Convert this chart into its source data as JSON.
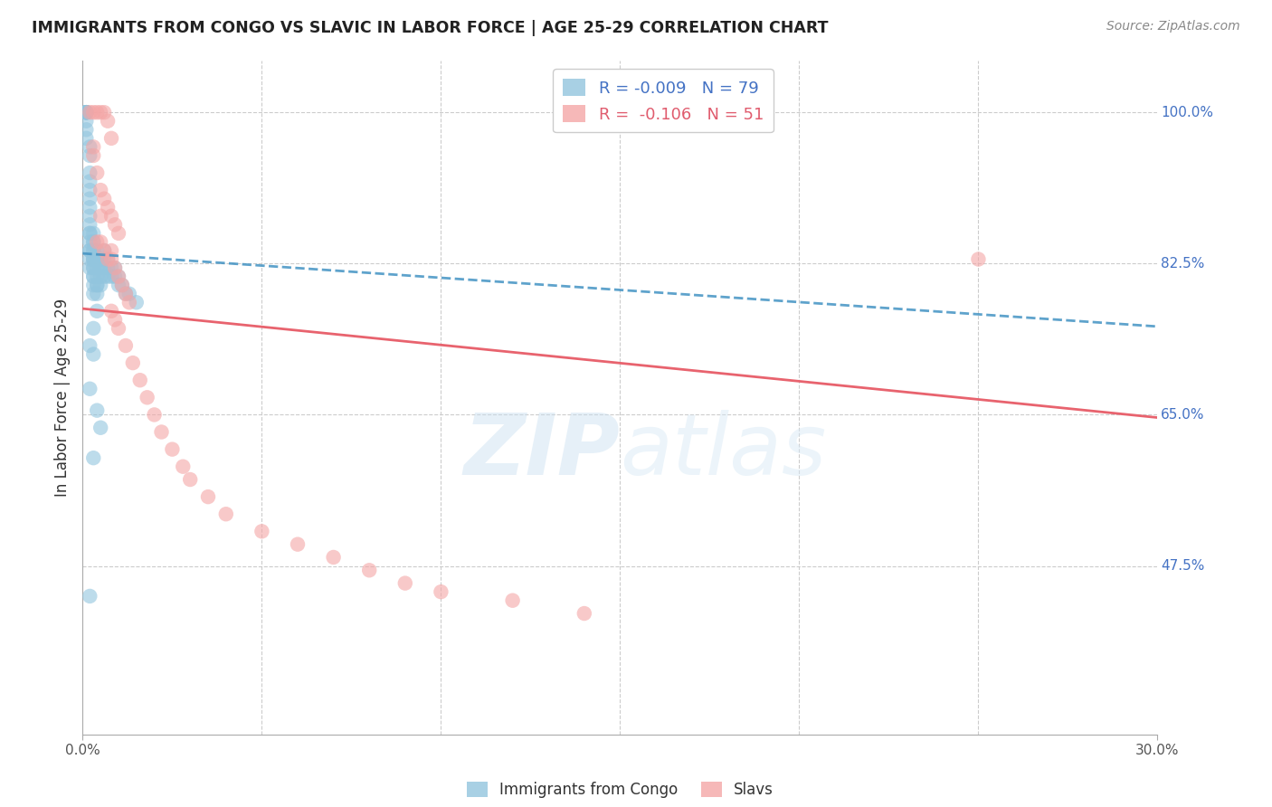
{
  "title": "IMMIGRANTS FROM CONGO VS SLAVIC IN LABOR FORCE | AGE 25-29 CORRELATION CHART",
  "source": "Source: ZipAtlas.com",
  "ylabel": "In Labor Force | Age 25-29",
  "xlim": [
    0.0,
    0.3
  ],
  "ylim": [
    0.28,
    1.06
  ],
  "right_ytick_vals": [
    1.0,
    0.825,
    0.65,
    0.475
  ],
  "right_ytick_labels": [
    "100.0%",
    "82.5%",
    "65.0%",
    "47.5%"
  ],
  "congo_R": -0.009,
  "congo_N": 79,
  "slavic_R": -0.106,
  "slavic_N": 51,
  "congo_color": "#92c5de",
  "slavic_color": "#f4a6a6",
  "trend_congo_color": "#4393c3",
  "trend_slavic_color": "#e8636e",
  "background_color": "#ffffff",
  "grid_color": "#cccccc",
  "congo_points_x": [
    0.001,
    0.001,
    0.001,
    0.001,
    0.001,
    0.001,
    0.001,
    0.001,
    0.001,
    0.001,
    0.002,
    0.002,
    0.002,
    0.002,
    0.002,
    0.002,
    0.002,
    0.002,
    0.002,
    0.002,
    0.002,
    0.002,
    0.002,
    0.002,
    0.002,
    0.002,
    0.003,
    0.003,
    0.003,
    0.003,
    0.003,
    0.003,
    0.003,
    0.003,
    0.003,
    0.003,
    0.003,
    0.003,
    0.003,
    0.003,
    0.004,
    0.004,
    0.004,
    0.004,
    0.004,
    0.004,
    0.004,
    0.004,
    0.005,
    0.005,
    0.005,
    0.005,
    0.005,
    0.006,
    0.006,
    0.006,
    0.006,
    0.007,
    0.007,
    0.007,
    0.008,
    0.008,
    0.009,
    0.009,
    0.01,
    0.01,
    0.011,
    0.012,
    0.013,
    0.015,
    0.003,
    0.002,
    0.004,
    0.005,
    0.003,
    0.002,
    0.004,
    0.003,
    0.002
  ],
  "congo_points_y": [
    1.0,
    1.0,
    1.0,
    1.0,
    1.0,
    1.0,
    1.0,
    0.99,
    0.98,
    0.97,
    0.96,
    0.95,
    0.93,
    0.92,
    0.91,
    0.9,
    0.89,
    0.88,
    0.87,
    0.86,
    0.86,
    0.85,
    0.84,
    0.84,
    0.83,
    0.82,
    0.86,
    0.85,
    0.85,
    0.84,
    0.84,
    0.83,
    0.83,
    0.83,
    0.82,
    0.82,
    0.81,
    0.81,
    0.8,
    0.79,
    0.84,
    0.83,
    0.83,
    0.82,
    0.81,
    0.8,
    0.8,
    0.79,
    0.83,
    0.83,
    0.82,
    0.81,
    0.8,
    0.84,
    0.83,
    0.82,
    0.81,
    0.83,
    0.82,
    0.81,
    0.82,
    0.81,
    0.82,
    0.81,
    0.81,
    0.8,
    0.8,
    0.79,
    0.79,
    0.78,
    0.72,
    0.68,
    0.655,
    0.635,
    0.6,
    0.44,
    0.77,
    0.75,
    0.73
  ],
  "slavic_points_x": [
    0.002,
    0.003,
    0.004,
    0.005,
    0.006,
    0.007,
    0.008,
    0.003,
    0.004,
    0.005,
    0.006,
    0.007,
    0.008,
    0.009,
    0.01,
    0.004,
    0.005,
    0.006,
    0.007,
    0.008,
    0.009,
    0.01,
    0.011,
    0.012,
    0.013,
    0.008,
    0.009,
    0.01,
    0.012,
    0.014,
    0.016,
    0.018,
    0.02,
    0.022,
    0.025,
    0.028,
    0.03,
    0.035,
    0.04,
    0.05,
    0.06,
    0.07,
    0.08,
    0.09,
    0.1,
    0.12,
    0.14,
    0.003,
    0.005,
    0.008,
    0.25
  ],
  "slavic_points_y": [
    1.0,
    1.0,
    1.0,
    1.0,
    1.0,
    0.99,
    0.97,
    0.95,
    0.93,
    0.91,
    0.9,
    0.89,
    0.88,
    0.87,
    0.86,
    0.85,
    0.85,
    0.84,
    0.83,
    0.83,
    0.82,
    0.81,
    0.8,
    0.79,
    0.78,
    0.77,
    0.76,
    0.75,
    0.73,
    0.71,
    0.69,
    0.67,
    0.65,
    0.63,
    0.61,
    0.59,
    0.575,
    0.555,
    0.535,
    0.515,
    0.5,
    0.485,
    0.47,
    0.455,
    0.445,
    0.435,
    0.42,
    0.96,
    0.88,
    0.84,
    0.83
  ]
}
